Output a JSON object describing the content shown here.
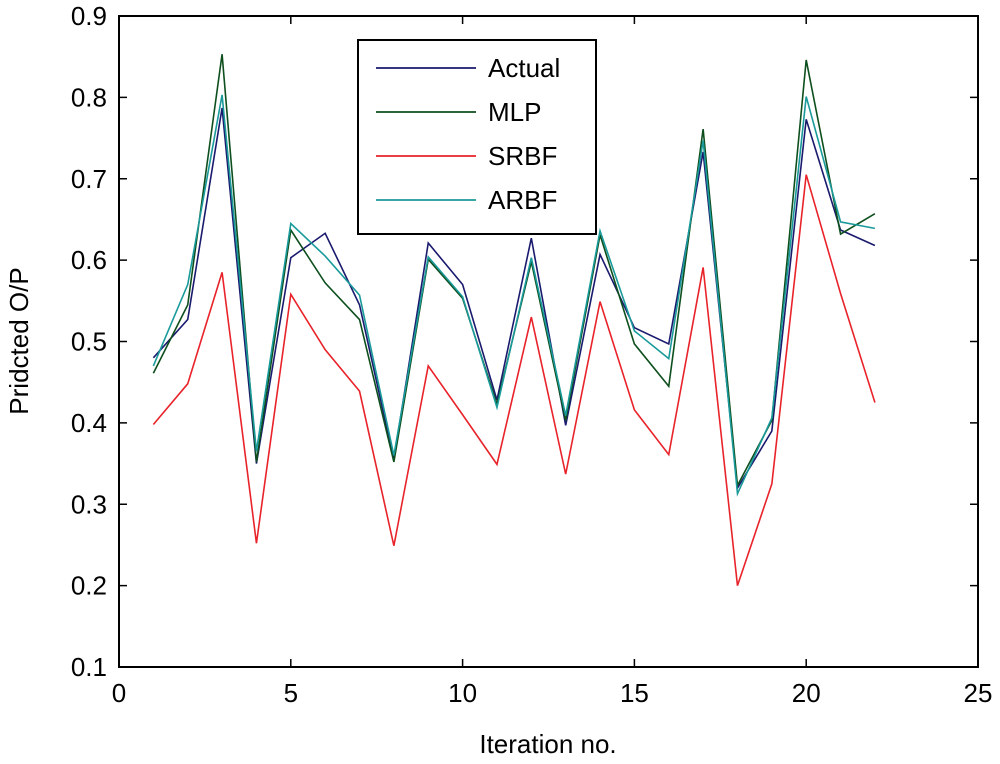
{
  "chart_data": {
    "type": "line",
    "title": "",
    "xlabel": "Iteration no.",
    "ylabel": "Pridcted O/P",
    "xlim": [
      0,
      25
    ],
    "ylim": [
      0.1,
      0.9
    ],
    "grid": false,
    "legend_position": "top-center",
    "x_ticks": [
      0,
      5,
      10,
      15,
      20,
      25
    ],
    "y_ticks": [
      0.1,
      0.2,
      0.3,
      0.4,
      0.5,
      0.6,
      0.7,
      0.8,
      0.9
    ],
    "x_tick_labels": [
      "0",
      "5",
      "10",
      "15",
      "20",
      "25"
    ],
    "y_tick_labels": [
      "0.1",
      "0.2",
      "0.3",
      "0.4",
      "0.5",
      "0.6",
      "0.7",
      "0.8",
      "0.9"
    ],
    "x": [
      1,
      2,
      3,
      4,
      5,
      6,
      7,
      8,
      9,
      10,
      11,
      12,
      13,
      14,
      15,
      16,
      17,
      18,
      19,
      20,
      21,
      22
    ],
    "series": [
      {
        "name": "Actual",
        "color": "#1a1a6e",
        "values": [
          0.48,
          0.527,
          0.787,
          0.35,
          0.603,
          0.633,
          0.545,
          0.355,
          0.621,
          0.57,
          0.428,
          0.627,
          0.397,
          0.607,
          0.517,
          0.497,
          0.733,
          0.32,
          0.39,
          0.773,
          0.637,
          0.618
        ]
      },
      {
        "name": "MLP",
        "color": "#0e4f1e",
        "values": [
          0.461,
          0.545,
          0.853,
          0.352,
          0.637,
          0.572,
          0.527,
          0.352,
          0.601,
          0.553,
          0.423,
          0.598,
          0.403,
          0.631,
          0.497,
          0.445,
          0.761,
          0.323,
          0.403,
          0.846,
          0.632,
          0.657
        ]
      },
      {
        "name": "SRBF",
        "color": "#e8232a",
        "values": [
          0.398,
          0.448,
          0.585,
          0.252,
          0.558,
          0.49,
          0.439,
          0.249,
          0.47,
          0.41,
          0.349,
          0.53,
          0.337,
          0.549,
          0.416,
          0.361,
          0.591,
          0.2,
          0.325,
          0.705,
          0.559,
          0.425
        ]
      },
      {
        "name": "ARBF",
        "color": "#1a9a9a",
        "values": [
          0.47,
          0.57,
          0.803,
          0.365,
          0.645,
          0.605,
          0.557,
          0.36,
          0.604,
          0.555,
          0.419,
          0.603,
          0.409,
          0.636,
          0.513,
          0.479,
          0.747,
          0.313,
          0.406,
          0.801,
          0.647,
          0.639
        ]
      }
    ]
  }
}
